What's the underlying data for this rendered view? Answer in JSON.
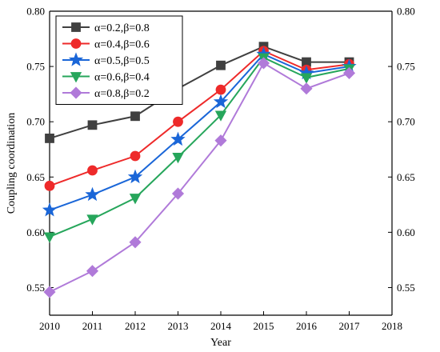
{
  "chart_data": {
    "type": "line",
    "title": "",
    "xlabel": "Year",
    "ylabel": "Coupling coordination",
    "xlim": [
      2010,
      2018
    ],
    "ylim": [
      0.525,
      0.8
    ],
    "xticks": [
      "2010",
      "2011",
      "2012",
      "2013",
      "2014",
      "2015",
      "2016",
      "2017",
      "2018"
    ],
    "yticks": [
      "0.55",
      "0.60",
      "0.65",
      "0.70",
      "0.75",
      "0.80"
    ],
    "right_axis_ticks": [
      "0.55",
      "0.60",
      "0.65",
      "0.70",
      "0.75",
      "0.80"
    ],
    "grid": false,
    "legend_position": "top-left",
    "x": [
      2010,
      2011,
      2012,
      2013,
      2014,
      2015,
      2016,
      2017
    ],
    "series": [
      {
        "name": "α=0.2,β=0.8",
        "color": "#404040",
        "marker": "square",
        "values": [
          0.685,
          0.697,
          0.705,
          0.73,
          0.751,
          0.768,
          0.754,
          0.754
        ]
      },
      {
        "name": "α=0.4,β=0.6",
        "color": "#ee2a2a",
        "marker": "circle",
        "values": [
          0.642,
          0.656,
          0.669,
          0.7,
          0.729,
          0.764,
          0.747,
          0.752
        ]
      },
      {
        "name": "α=0.5,β=0.5",
        "color": "#1a66d8",
        "marker": "star",
        "values": [
          0.62,
          0.634,
          0.65,
          0.684,
          0.718,
          0.761,
          0.744,
          0.75
        ]
      },
      {
        "name": "α=0.6,β=0.4",
        "color": "#26a65b",
        "marker": "triangle-down",
        "values": [
          0.596,
          0.612,
          0.631,
          0.668,
          0.706,
          0.758,
          0.74,
          0.748
        ]
      },
      {
        "name": "α=0.8,β=0.2",
        "color": "#b07ad9",
        "marker": "diamond",
        "values": [
          0.546,
          0.565,
          0.591,
          0.635,
          0.683,
          0.753,
          0.73,
          0.744
        ]
      }
    ]
  }
}
